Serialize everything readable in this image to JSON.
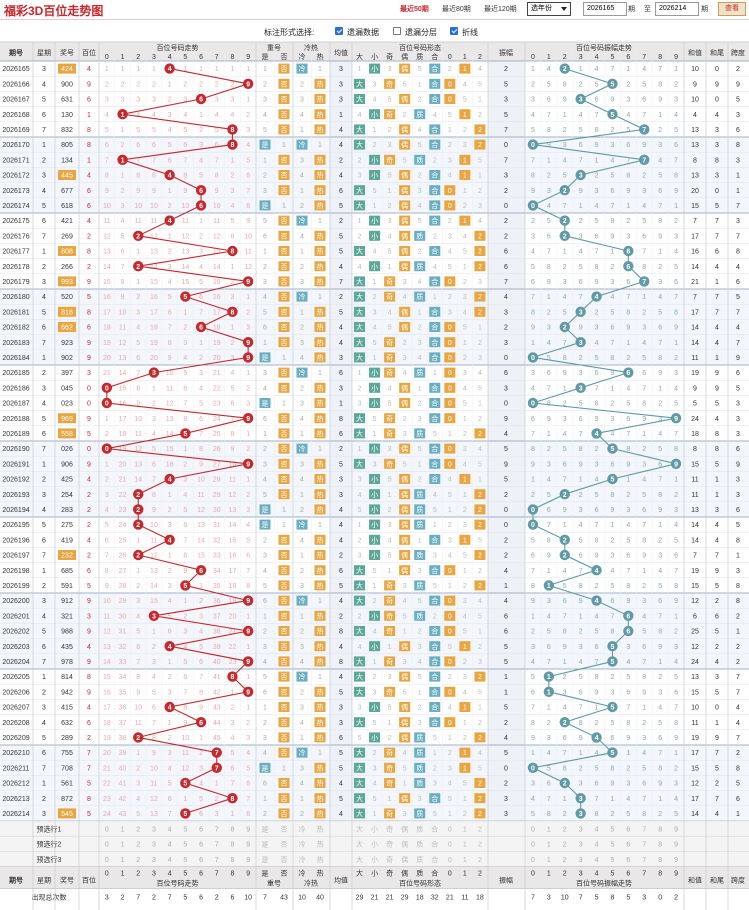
{
  "header": {
    "title": "福彩3D百位走势图",
    "links": [
      "最近50期",
      "最近80期",
      "最近120期"
    ],
    "active_link": 0,
    "year_select": "选年份",
    "from_value": "2026165",
    "period_unit": "期",
    "to_label": "至",
    "to_value": "2026214",
    "query_label": "查看"
  },
  "options": {
    "label": "标注形式选择:",
    "items": [
      {
        "label": "遗漏数据",
        "checked": true
      },
      {
        "label": "遗漏分层",
        "checked": false
      },
      {
        "label": "折线",
        "checked": true
      }
    ]
  },
  "columns": {
    "issue": "期号",
    "week": "星期",
    "prize": "奖号",
    "hundred": "百位",
    "digits_title": "百位号码走势",
    "repeat_title": "重号",
    "repeat_yes": "是",
    "repeat_no": "否",
    "hotcold_title": "冷热",
    "cold": "冷",
    "hot": "热",
    "avg_title": "均值",
    "form_title": "百位号码形态",
    "big": "大",
    "small": "小",
    "odd": "奇",
    "even": "偶",
    "prime": "质",
    "composite": "合",
    "r0": "0",
    "r1": "1",
    "r2": "2",
    "amp_title": "振幅",
    "amp_trend_title": "百位号码振幅走势",
    "sum": "和值",
    "sum_tail": "和尾",
    "span": "跨度",
    "digits": [
      "0",
      "1",
      "2",
      "3",
      "4",
      "5",
      "6",
      "7",
      "8",
      "9"
    ]
  },
  "rows": [
    {
      "issue": "2026165",
      "week": "3",
      "prize": "424",
      "h": "4"
    },
    {
      "issue": "2026166",
      "week": "4",
      "prize": "900",
      "h": "9"
    },
    {
      "issue": "2026167",
      "week": "5",
      "prize": "631",
      "h": "6"
    },
    {
      "issue": "2026168",
      "week": "6",
      "prize": "130",
      "h": "1"
    },
    {
      "issue": "2026169",
      "week": "7",
      "prize": "832",
      "h": "8"
    },
    {
      "issue": "2026170",
      "week": "1",
      "prize": "805",
      "h": "8"
    },
    {
      "issue": "2026171",
      "week": "2",
      "prize": "134",
      "h": "1"
    },
    {
      "issue": "2026172",
      "week": "3",
      "prize": "445",
      "h": "4"
    },
    {
      "issue": "2026173",
      "week": "4",
      "prize": "677",
      "h": "6"
    },
    {
      "issue": "2026174",
      "week": "5",
      "prize": "618",
      "h": "6"
    },
    {
      "issue": "2026175",
      "week": "6",
      "prize": "421",
      "h": "4"
    },
    {
      "issue": "2026176",
      "week": "7",
      "prize": "269",
      "h": "2"
    },
    {
      "issue": "2026177",
      "week": "1",
      "prize": "808",
      "h": "8"
    },
    {
      "issue": "2026178",
      "week": "2",
      "prize": "266",
      "h": "2"
    },
    {
      "issue": "2026179",
      "week": "3",
      "prize": "993",
      "h": "9"
    },
    {
      "issue": "2026180",
      "week": "4",
      "prize": "520",
      "h": "5"
    },
    {
      "issue": "2026181",
      "week": "5",
      "prize": "818",
      "h": "8"
    },
    {
      "issue": "2026182",
      "week": "6",
      "prize": "662",
      "h": "6"
    },
    {
      "issue": "2026183",
      "week": "7",
      "prize": "923",
      "h": "9"
    },
    {
      "issue": "2026184",
      "week": "1",
      "prize": "902",
      "h": "9"
    },
    {
      "issue": "2026185",
      "week": "2",
      "prize": "397",
      "h": "3"
    },
    {
      "issue": "2026186",
      "week": "3",
      "prize": "045",
      "h": "0"
    },
    {
      "issue": "2026187",
      "week": "4",
      "prize": "023",
      "h": "0"
    },
    {
      "issue": "2026188",
      "week": "5",
      "prize": "969",
      "h": "9"
    },
    {
      "issue": "2026189",
      "week": "6",
      "prize": "558",
      "h": "5"
    },
    {
      "issue": "2026190",
      "week": "7",
      "prize": "026",
      "h": "0"
    },
    {
      "issue": "2026191",
      "week": "1",
      "prize": "906",
      "h": "9"
    },
    {
      "issue": "2026192",
      "week": "2",
      "prize": "425",
      "h": "4"
    },
    {
      "issue": "2026193",
      "week": "3",
      "prize": "254",
      "h": "2"
    },
    {
      "issue": "2026194",
      "week": "4",
      "prize": "283",
      "h": "2"
    },
    {
      "issue": "2026195",
      "week": "5",
      "prize": "275",
      "h": "2"
    },
    {
      "issue": "2026196",
      "week": "6",
      "prize": "419",
      "h": "4"
    },
    {
      "issue": "2026197",
      "week": "7",
      "prize": "232",
      "h": "2"
    },
    {
      "issue": "2026198",
      "week": "1",
      "prize": "685",
      "h": "6"
    },
    {
      "issue": "2026199",
      "week": "2",
      "prize": "591",
      "h": "5"
    },
    {
      "issue": "2026200",
      "week": "3",
      "prize": "912",
      "h": "9"
    },
    {
      "issue": "2026201",
      "week": "4",
      "prize": "321",
      "h": "3"
    },
    {
      "issue": "2026202",
      "week": "5",
      "prize": "988",
      "h": "9"
    },
    {
      "issue": "2026203",
      "week": "6",
      "prize": "435",
      "h": "4"
    },
    {
      "issue": "2026204",
      "week": "7",
      "prize": "978",
      "h": "9"
    },
    {
      "issue": "2026205",
      "week": "1",
      "prize": "814",
      "h": "8"
    },
    {
      "issue": "2026206",
      "week": "2",
      "prize": "942",
      "h": "9"
    },
    {
      "issue": "2026207",
      "week": "3",
      "prize": "415",
      "h": "4"
    },
    {
      "issue": "2026208",
      "week": "4",
      "prize": "632",
      "h": "6"
    },
    {
      "issue": "2026209",
      "week": "5",
      "prize": "289",
      "h": "2"
    },
    {
      "issue": "2026210",
      "week": "6",
      "prize": "755",
      "h": "7"
    },
    {
      "issue": "2026211",
      "week": "7",
      "prize": "708",
      "h": "7"
    },
    {
      "issue": "2026212",
      "week": "1",
      "prize": "561",
      "h": "5"
    },
    {
      "issue": "2026213",
      "week": "2",
      "prize": "872",
      "h": "8"
    },
    {
      "issue": "2026214",
      "week": "3",
      "prize": "545",
      "h": "5"
    }
  ],
  "preselect": [
    "预选行1",
    "预选行2",
    "预选行3"
  ],
  "footer": {
    "stats_label": "出现总次数",
    "digit_counts": [
      "3",
      "2",
      "7",
      "2",
      "7",
      "5",
      "6",
      "2",
      "6",
      "10"
    ],
    "repeat_counts": [
      "7",
      "43"
    ],
    "hotcold_counts": [
      "10",
      "40"
    ],
    "form_counts": [
      "29",
      "21",
      "21",
      "29",
      "18",
      "32",
      "21",
      "11",
      "18"
    ],
    "amp_counts": [
      "7",
      "3",
      "10",
      "7",
      "5",
      "8",
      "5",
      "3",
      "0",
      "2"
    ]
  }
}
